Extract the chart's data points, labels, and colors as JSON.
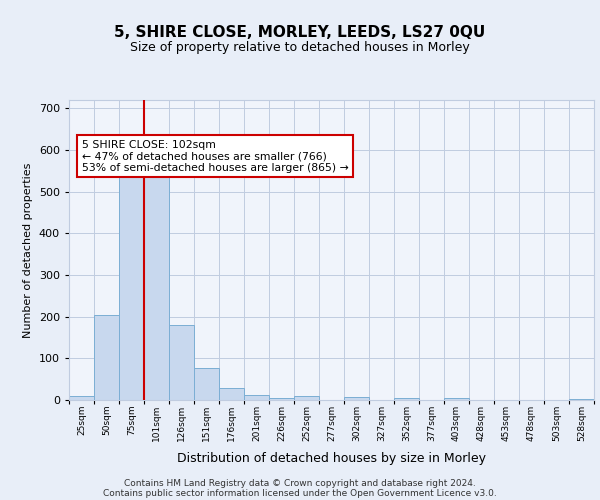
{
  "title1": "5, SHIRE CLOSE, MORLEY, LEEDS, LS27 0QU",
  "title2": "Size of property relative to detached houses in Morley",
  "xlabel": "Distribution of detached houses by size in Morley",
  "ylabel": "Number of detached properties",
  "bin_labels": [
    "25sqm",
    "50sqm",
    "75sqm",
    "101sqm",
    "126sqm",
    "151sqm",
    "176sqm",
    "201sqm",
    "226sqm",
    "252sqm",
    "277sqm",
    "302sqm",
    "327sqm",
    "352sqm",
    "377sqm",
    "403sqm",
    "428sqm",
    "453sqm",
    "478sqm",
    "503sqm",
    "528sqm"
  ],
  "bin_edges": [
    0,
    1,
    2,
    3,
    4,
    5,
    6,
    7,
    8,
    9,
    10,
    11,
    12,
    13,
    14,
    15,
    16,
    17,
    18,
    19,
    20,
    21
  ],
  "bar_heights": [
    10,
    205,
    550,
    555,
    180,
    77,
    30,
    12,
    5,
    10,
    0,
    8,
    0,
    5,
    0,
    4,
    0,
    0,
    0,
    0,
    3
  ],
  "bar_color": "#c8d8ee",
  "bar_edge_color": "#7baed4",
  "vline_x": 3,
  "vline_color": "#cc0000",
  "annotation_text": "5 SHIRE CLOSE: 102sqm\n← 47% of detached houses are smaller (766)\n53% of semi-detached houses are larger (865) →",
  "annotation_box_color": "#ffffff",
  "annotation_box_edge": "#cc0000",
  "ylim": [
    0,
    720
  ],
  "yticks": [
    0,
    100,
    200,
    300,
    400,
    500,
    600,
    700
  ],
  "footer_line1": "Contains HM Land Registry data © Crown copyright and database right 2024.",
  "footer_line2": "Contains public sector information licensed under the Open Government Licence v3.0.",
  "bg_color": "#e8eef8",
  "plot_bg_color": "#f0f4fb",
  "grid_color": "#c0cce0",
  "title1_fontsize": 11,
  "title2_fontsize": 9,
  "ylabel_fontsize": 8,
  "xlabel_fontsize": 9
}
